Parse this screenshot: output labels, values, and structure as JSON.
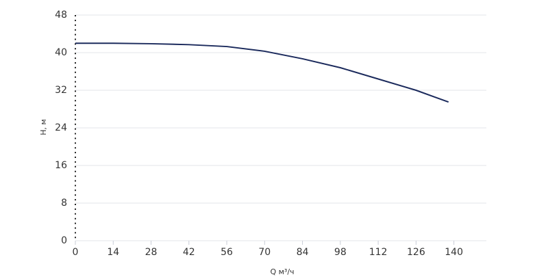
{
  "chart_data": {
    "type": "line",
    "xlabel": "Q м³/ч",
    "ylabel": "H, м",
    "x": [
      0,
      14,
      28,
      42,
      56,
      70,
      84,
      98,
      112,
      126,
      138
    ],
    "series": [
      {
        "color": "#1b2a5c",
        "values": [
          42.0,
          42.0,
          41.9,
          41.7,
          41.3,
          40.3,
          38.7,
          36.8,
          34.4,
          32.0,
          29.5
        ]
      }
    ],
    "xlim": [
      0,
      152
    ],
    "xticks": [
      0,
      14,
      28,
      42,
      56,
      70,
      84,
      98,
      112,
      126,
      140
    ],
    "ylim": [
      0,
      48
    ],
    "yticks": [
      0,
      8,
      16,
      24,
      32,
      40,
      48
    ],
    "grid": true
  }
}
